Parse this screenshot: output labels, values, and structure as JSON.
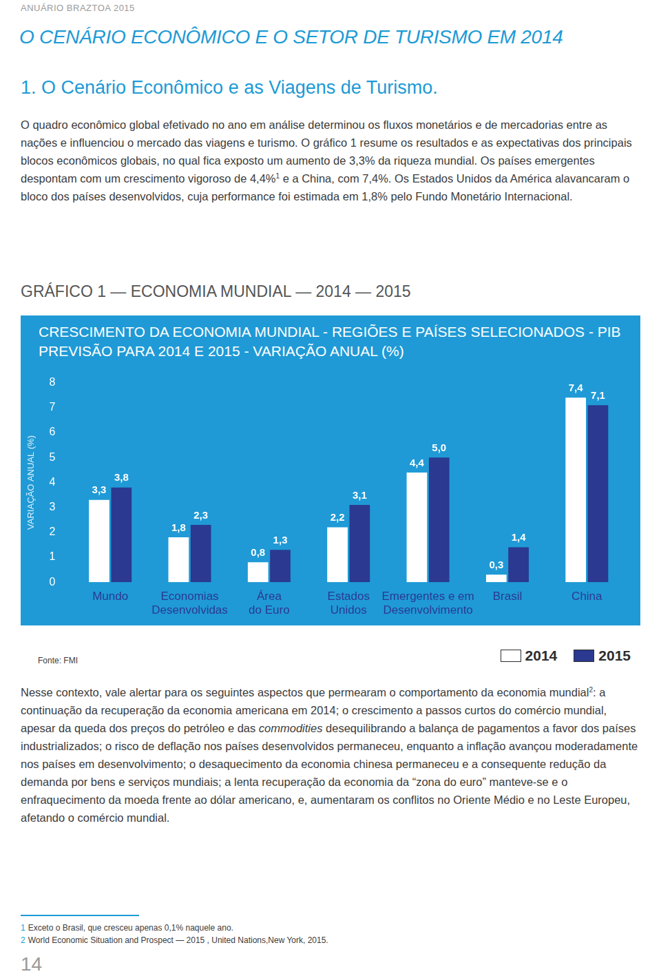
{
  "header": "ANUÁRIO BRAZTOA 2015",
  "title": "O CENÁRIO ECONÔMICO E O SETOR DE TURISMO EM 2014",
  "section_heading": "1. O Cenário Econômico e as Viagens de Turismo.",
  "paragraphs": [
    [
      "O quadro econômico global efetivado no ano em análise determinou os fluxos monetários e de mercadorias entre as nações e influenciou o mercado das viagens e turismo. O gráfico 1 resume os resultados e as expectativas dos principais blocos econômicos globais, no qual fica exposto um aumento de 3,3% da riqueza mundial. Os países emergentes despontam com um crescimento vigoroso de 4,4%",
      {
        "sup": "1"
      },
      " e a China, com 7,4%. Os Estados Unidos da América alavancaram o bloco dos países desenvolvidos, cuja performance foi estimada em 1,8% pelo Fundo Monetário Internacional."
    ],
    [
      "Nesse contexto, vale alertar para os seguintes aspectos que permearam o comportamento da economia mundial",
      {
        "sup": "2"
      },
      ": a continuação da recuperação da economia americana em 2014; o crescimento a passos curtos do comércio mundial, apesar da queda dos preços do petróleo e das ",
      {
        "em": "commodities"
      },
      " desequilibrando a balança de pagamentos a favor dos países industrializados; o risco de deflação nos países desenvolvidos permaneceu, enquanto a inflação avançou moderadamente nos países em desenvolvimento; o desaquecimento da economia chinesa permaneceu e a consequente redução da demanda por bens e serviços mundiais; a lenta recuperação da economia da “zona do euro” manteve-se e o enfraquecimento da moeda frente ao dólar americano, e,  aumentaram os conflitos no Oriente Médio e no Leste Europeu, afetando o comércio mundial."
    ]
  ],
  "figure_caption": "GRÁFICO 1 — ECONOMIA MUNDIAL — 2014 — 2015",
  "chart_data": {
    "type": "bar",
    "title": "CRESCIMENTO DA ECONOMIA MUNDIAL - REGIÕES E PAÍSES SELECIONADOS - PIB",
    "subtitle": "PREVISÃO PARA 2014 E 2015 - VARIAÇÃO ANUAL (%)",
    "y_label": "VARIAÇÃO ANUAL (%)",
    "source": "Fonte: FMI",
    "categories": [
      "Mundo",
      "Economias\nDesenvolvidas",
      "Área\ndo Euro",
      "Estados\nUnidos",
      "Emergentes e em\nDesenvolvimento",
      "Brasil",
      "China"
    ],
    "series": [
      {
        "name": "2014",
        "color": "#ffffff",
        "values": [
          3.3,
          1.8,
          0.8,
          2.2,
          4.4,
          0.3,
          7.4
        ],
        "value_labels": [
          "3,3",
          "1,8",
          "0,8",
          "2,2",
          "4,4",
          "0,3",
          "7,4"
        ]
      },
      {
        "name": "2015",
        "color": "#2b3990",
        "values": [
          3.8,
          2.3,
          1.3,
          3.1,
          5.0,
          1.4,
          7.1
        ],
        "value_labels": [
          "3,8",
          "2,3",
          "1,3",
          "3,1",
          "5,0",
          "1,4",
          "7,1"
        ]
      }
    ],
    "ylim": [
      0,
      8
    ],
    "yticks": [
      0,
      1,
      2,
      3,
      4,
      5,
      6,
      7,
      8
    ],
    "grid": false,
    "data_labels": true,
    "legend": "bottom right"
  },
  "footnotes": [
    {
      "marker": "1",
      "text": "Exceto o Brasil, que cresceu apenas 0,1% naquele ano."
    },
    {
      "marker": "2",
      "text": "World Economic Situation and Prospect — 2015 , United Nations,New York, 2015."
    }
  ],
  "page_number": "14"
}
